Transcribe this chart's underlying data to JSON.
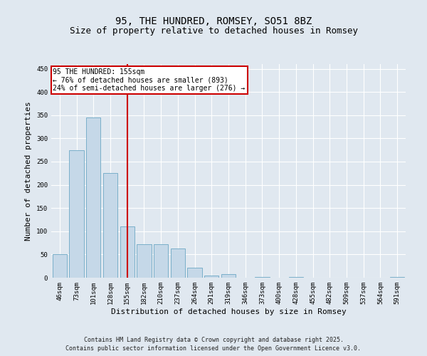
{
  "title_line1": "95, THE HUNDRED, ROMSEY, SO51 8BZ",
  "title_line2": "Size of property relative to detached houses in Romsey",
  "xlabel": "Distribution of detached houses by size in Romsey",
  "ylabel": "Number of detached properties",
  "categories": [
    "46sqm",
    "73sqm",
    "101sqm",
    "128sqm",
    "155sqm",
    "182sqm",
    "210sqm",
    "237sqm",
    "264sqm",
    "291sqm",
    "319sqm",
    "346sqm",
    "373sqm",
    "400sqm",
    "428sqm",
    "455sqm",
    "482sqm",
    "509sqm",
    "537sqm",
    "564sqm",
    "591sqm"
  ],
  "values": [
    50,
    275,
    345,
    225,
    110,
    72,
    72,
    63,
    22,
    5,
    8,
    0,
    1,
    0,
    1,
    0,
    0,
    0,
    0,
    0,
    2
  ],
  "bar_color": "#c5d8e8",
  "bar_edge_color": "#7aafc9",
  "vline_x": 4,
  "vline_color": "#cc0000",
  "annotation_text": "95 THE HUNDRED: 155sqm\n← 76% of detached houses are smaller (893)\n24% of semi-detached houses are larger (276) →",
  "annotation_box_color": "#ffffff",
  "annotation_box_edge": "#cc0000",
  "ylim": [
    0,
    460
  ],
  "yticks": [
    0,
    50,
    100,
    150,
    200,
    250,
    300,
    350,
    400,
    450
  ],
  "background_color": "#e0e8f0",
  "plot_bg_color": "#e0e8f0",
  "footer_line1": "Contains HM Land Registry data © Crown copyright and database right 2025.",
  "footer_line2": "Contains public sector information licensed under the Open Government Licence v3.0.",
  "title_fontsize": 10,
  "subtitle_fontsize": 9,
  "tick_fontsize": 6.5,
  "xlabel_fontsize": 8,
  "ylabel_fontsize": 8,
  "footer_fontsize": 6,
  "annot_fontsize": 7
}
